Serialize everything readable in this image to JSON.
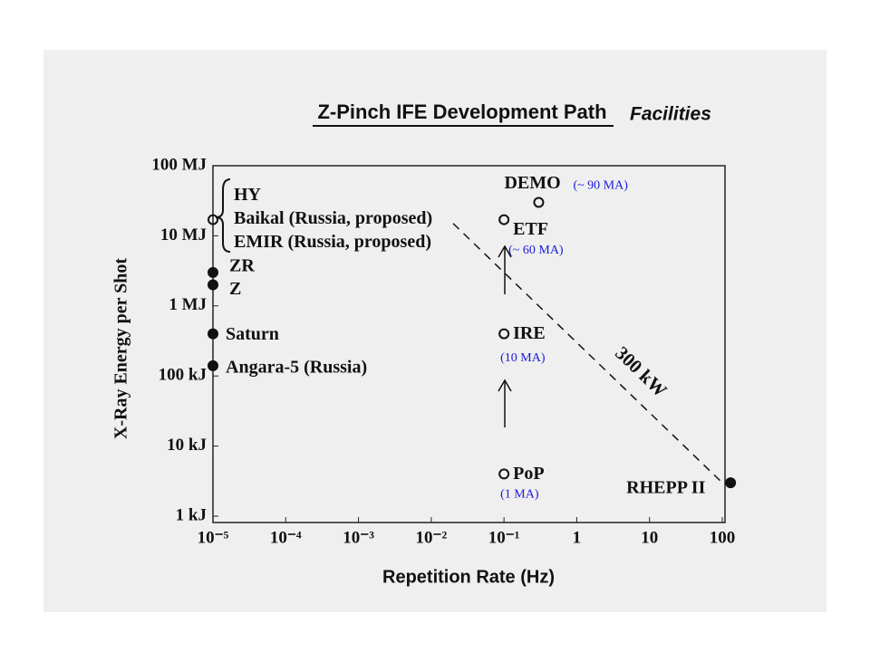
{
  "chart_data": {
    "type": "scatter",
    "title": "Z-Pinch IFE Development Path",
    "subtitle": "Facilities",
    "x_label": "Repetition Rate (Hz)",
    "y_label": "X-Ray Energy per Shot",
    "x_log": true,
    "y_log": true,
    "xlim": [
      1e-05,
      100
    ],
    "ylim": [
      1000,
      100000000
    ],
    "xticks": [
      {
        "value": 1e-05,
        "label": "10⁻⁵"
      },
      {
        "value": 0.0001,
        "label": "10⁻⁴"
      },
      {
        "value": 0.001,
        "label": "10⁻³"
      },
      {
        "value": 0.01,
        "label": "10⁻²"
      },
      {
        "value": 0.1,
        "label": "10⁻¹"
      },
      1,
      10,
      100
    ],
    "yticks": [
      {
        "value": 1000,
        "label": "1 kJ"
      },
      {
        "value": 10000,
        "label": "10 kJ"
      },
      {
        "value": 100000,
        "label": "100 kJ"
      },
      {
        "value": 1000000,
        "label": "1 MJ"
      },
      {
        "value": 10000000,
        "label": "10 MJ"
      },
      {
        "value": 100000000,
        "label": "100 MJ"
      }
    ],
    "points": [
      {
        "labels": [
          "HY",
          "Baikal (Russia, proposed)",
          "EMIR (Russia, proposed)"
        ],
        "x": 1e-05,
        "y": 17000000,
        "filled": false
      },
      {
        "labels": [
          "ZR"
        ],
        "x": 1e-05,
        "y": 3000000,
        "filled": true
      },
      {
        "labels": [
          "Z"
        ],
        "x": 1e-05,
        "y": 2000000,
        "filled": true
      },
      {
        "labels": [
          "Saturn"
        ],
        "x": 1e-05,
        "y": 400000,
        "filled": true
      },
      {
        "labels": [
          "Angara-5 (Russia)"
        ],
        "x": 1e-05,
        "y": 140000,
        "filled": true
      },
      {
        "labels": [
          "DEMO"
        ],
        "x": 0.3,
        "y": 30000000,
        "filled": false,
        "current": "(~ 90 MA)"
      },
      {
        "labels": [
          "ETF"
        ],
        "x": 0.1,
        "y": 17000000,
        "filled": false,
        "current": "(~ 60 MA)"
      },
      {
        "labels": [
          "IRE"
        ],
        "x": 0.1,
        "y": 400000,
        "filled": false,
        "current": "(10 MA)"
      },
      {
        "labels": [
          "PoP"
        ],
        "x": 0.1,
        "y": 4000,
        "filled": false,
        "current": "(1 MA)"
      },
      {
        "labels": [
          "RHEPP II"
        ],
        "x": 130,
        "y": 3000,
        "filled": true
      }
    ],
    "power_line": {
      "label": "300 kW",
      "value": 300000,
      "x_range": [
        0.02,
        100
      ]
    }
  }
}
